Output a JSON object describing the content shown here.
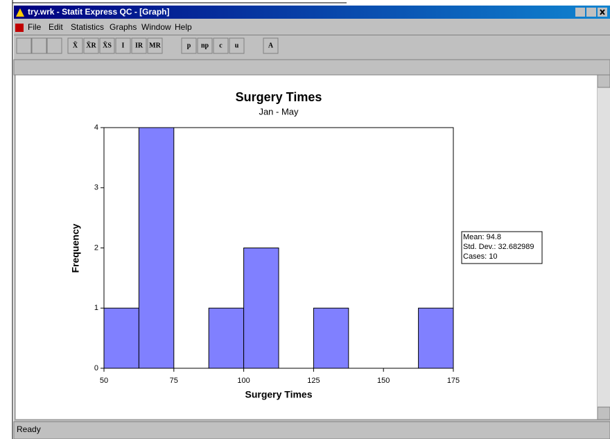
{
  "window": {
    "title": "try.wrk - Statit Express QC - [Graph]"
  },
  "menu": [
    "File",
    "Edit",
    "Statistics",
    "Graphs",
    "Window",
    "Help"
  ],
  "toolbar": [
    "X̄",
    "X̄R",
    "X̄S",
    "I",
    "IR",
    "MR",
    "p",
    "np",
    "c",
    "u",
    "A"
  ],
  "stats": [
    "Mean:  94.8",
    "Std. Dev.:  32.682989",
    "Cases:  10"
  ],
  "status": "Ready",
  "chart_data": {
    "type": "histogram",
    "title": "Surgery Times",
    "subtitle": "Jan - May",
    "x_label": "Surgery Times",
    "y_label": "Frequency",
    "bins": [
      50,
      62.5,
      75,
      87.5,
      100,
      112.5,
      125,
      137.5,
      150,
      162.5,
      175
    ],
    "values": [
      1,
      4,
      0,
      1,
      2,
      0,
      1,
      0,
      0,
      1
    ],
    "color": "#8080ff",
    "xlim": [
      50,
      175
    ],
    "xticks": [
      50,
      75,
      100,
      125,
      150,
      175
    ],
    "ylim": [
      0,
      4
    ],
    "yticks": [
      0,
      1,
      2,
      3,
      4
    ]
  }
}
